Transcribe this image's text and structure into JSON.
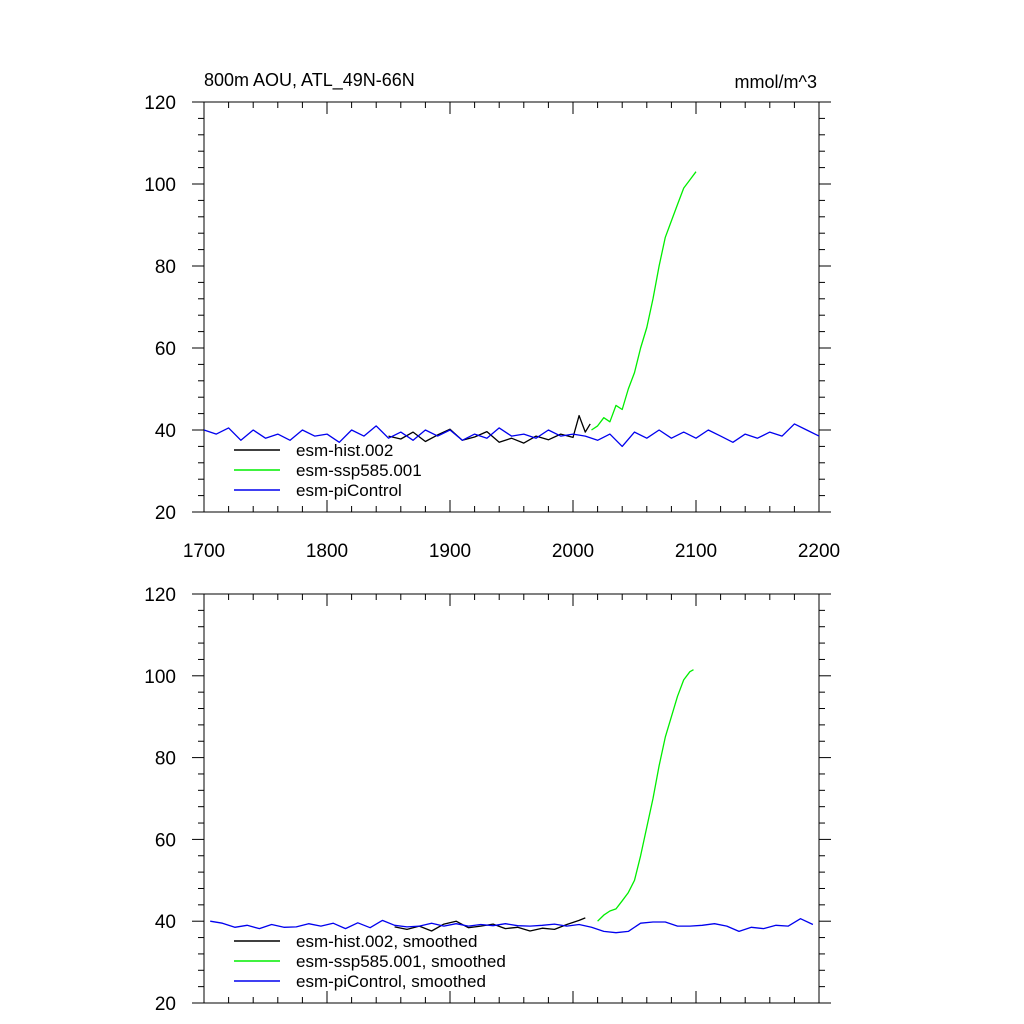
{
  "chart_data": [
    {
      "type": "line",
      "title_left": "800m AOU, ATL_49N-66N",
      "title_right": "mmol/m^3",
      "xlim": [
        1700,
        2200
      ],
      "ylim": [
        20,
        120
      ],
      "x_ticks": [
        1700,
        1800,
        1900,
        2000,
        2100,
        2200
      ],
      "y_ticks": [
        20,
        40,
        60,
        80,
        100,
        120
      ],
      "x_tick_labels_shown": true,
      "legend_position": "bottom-left",
      "series": [
        {
          "name": "esm-hist.002",
          "color": "#000000",
          "x": [
            1850,
            1860,
            1870,
            1880,
            1890,
            1900,
            1910,
            1920,
            1930,
            1940,
            1950,
            1960,
            1970,
            1980,
            1990,
            2000,
            2005,
            2010,
            2014
          ],
          "y": [
            38.5,
            37.8,
            39.5,
            37.2,
            38.8,
            40.2,
            37.5,
            38.3,
            39.6,
            37.0,
            38.0,
            36.8,
            38.5,
            37.6,
            39.0,
            38.2,
            43.5,
            39.5,
            41.5
          ]
        },
        {
          "name": "esm-ssp585.001",
          "color": "#00ee00",
          "x": [
            2015,
            2020,
            2025,
            2030,
            2035,
            2040,
            2045,
            2050,
            2055,
            2060,
            2065,
            2070,
            2075,
            2080,
            2085,
            2090,
            2095,
            2100
          ],
          "y": [
            40,
            41,
            43,
            42,
            46,
            45,
            50,
            54,
            60,
            65,
            72,
            80,
            87,
            91,
            95,
            99,
            101,
            103
          ]
        },
        {
          "name": "esm-piControl",
          "color": "#0000ee",
          "x": [
            1700,
            1710,
            1720,
            1730,
            1740,
            1750,
            1760,
            1770,
            1780,
            1790,
            1800,
            1810,
            1820,
            1830,
            1840,
            1850,
            1860,
            1870,
            1880,
            1890,
            1900,
            1910,
            1920,
            1930,
            1940,
            1950,
            1960,
            1970,
            1980,
            1990,
            2000,
            2010,
            2020,
            2030,
            2040,
            2050,
            2060,
            2070,
            2080,
            2090,
            2100,
            2110,
            2120,
            2130,
            2140,
            2150,
            2160,
            2170,
            2180,
            2190,
            2200
          ],
          "y": [
            40,
            39,
            40.5,
            37.5,
            40,
            38,
            39,
            37.5,
            40,
            38.5,
            39,
            37,
            40,
            38.5,
            41,
            38,
            39.5,
            37.5,
            40,
            38.5,
            40,
            37.5,
            39,
            38,
            40.5,
            38.5,
            39,
            38,
            40,
            38.5,
            39,
            38.5,
            37.5,
            39,
            36,
            39.5,
            38,
            40,
            38,
            39.5,
            38,
            40,
            38.5,
            37,
            39,
            38,
            39.5,
            38.5,
            41.5,
            40,
            38.5
          ]
        }
      ]
    },
    {
      "type": "line",
      "xlim": [
        1700,
        2200
      ],
      "ylim": [
        20,
        120
      ],
      "x_ticks": [
        1700,
        1800,
        1900,
        2000,
        2100,
        2200
      ],
      "y_ticks": [
        20,
        40,
        60,
        80,
        100,
        120
      ],
      "x_tick_labels_shown": false,
      "legend_position": "bottom-left",
      "series": [
        {
          "name": "esm-hist.002, smoothed",
          "color": "#000000",
          "x": [
            1855,
            1865,
            1875,
            1885,
            1895,
            1905,
            1915,
            1925,
            1935,
            1945,
            1955,
            1965,
            1975,
            1985,
            1995,
            2005,
            2010
          ],
          "y": [
            38.6,
            38.0,
            38.8,
            37.6,
            39.3,
            40.0,
            38.4,
            38.8,
            39.3,
            38.2,
            38.5,
            37.6,
            38.3,
            38.0,
            39.2,
            40.2,
            40.8
          ]
        },
        {
          "name": "esm-ssp585.001, smoothed",
          "color": "#00ee00",
          "x": [
            2020,
            2025,
            2030,
            2035,
            2040,
            2045,
            2050,
            2055,
            2060,
            2065,
            2070,
            2075,
            2080,
            2085,
            2090,
            2095,
            2098
          ],
          "y": [
            40,
            41.5,
            42.5,
            43,
            45,
            47,
            50,
            56,
            63,
            70,
            78,
            85,
            90,
            95,
            99,
            101,
            101.5
          ]
        },
        {
          "name": "esm-piControl, smoothed",
          "color": "#0000ee",
          "x": [
            1705,
            1715,
            1725,
            1735,
            1745,
            1755,
            1765,
            1775,
            1785,
            1795,
            1805,
            1815,
            1825,
            1835,
            1845,
            1855,
            1865,
            1875,
            1885,
            1895,
            1905,
            1915,
            1925,
            1935,
            1945,
            1955,
            1965,
            1975,
            1985,
            1995,
            2005,
            2015,
            2025,
            2035,
            2045,
            2055,
            2065,
            2075,
            2085,
            2095,
            2105,
            2115,
            2125,
            2135,
            2145,
            2155,
            2165,
            2175,
            2185,
            2195
          ],
          "y": [
            40,
            39.5,
            38.5,
            39,
            38.2,
            39.2,
            38.5,
            38.6,
            39.4,
            38.8,
            39.5,
            38.2,
            39.6,
            38.4,
            40.2,
            39,
            38.6,
            38.8,
            39.5,
            38.8,
            39.4,
            38.8,
            39.2,
            38.9,
            39.4,
            38.9,
            38.8,
            39,
            39.3,
            38.8,
            39.2,
            38.5,
            37.5,
            37.2,
            37.5,
            39.5,
            39.8,
            39.8,
            38.8,
            38.8,
            39,
            39.4,
            38.8,
            37.5,
            38.5,
            38.2,
            39,
            38.8,
            40.6,
            39.2
          ]
        }
      ]
    }
  ]
}
